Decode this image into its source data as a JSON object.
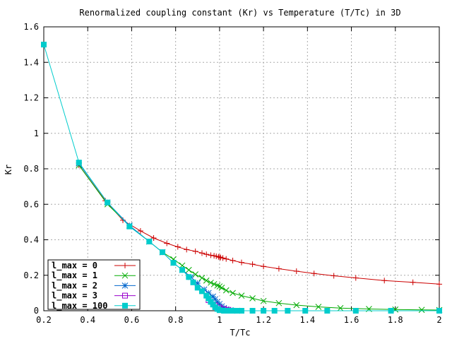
{
  "chart_data": {
    "type": "line",
    "title": "Renormalized coupling constant (Kr) vs Temperature (T/Tc) in 3D",
    "xlabel": "T/Tc",
    "ylabel": "Kr",
    "xlim": [
      0.2,
      2.0
    ],
    "ylim": [
      0,
      1.6
    ],
    "xticks": [
      "0.2",
      "0.4",
      "0.6",
      "0.8",
      "1",
      "1.2",
      "1.4",
      "1.6",
      "1.8",
      "2"
    ],
    "yticks": [
      "0",
      "0.2",
      "0.4",
      "0.6",
      "0.8",
      "1",
      "1.2",
      "1.4",
      "1.6"
    ],
    "grid": true,
    "legend_position": "bottom-left",
    "series": [
      {
        "name": "l_max = 0",
        "color": "#cc0000",
        "marker": "plus",
        "x": [
          0.36,
          0.48,
          0.56,
          0.64,
          0.7,
          0.76,
          0.81,
          0.85,
          0.89,
          0.92,
          0.94,
          0.96,
          0.975,
          0.985,
          0.995,
          1.0,
          1.005,
          1.015,
          1.03,
          1.06,
          1.1,
          1.15,
          1.2,
          1.27,
          1.35,
          1.43,
          1.52,
          1.62,
          1.75,
          1.88,
          2.0
        ],
        "y": [
          0.82,
          0.62,
          0.51,
          0.45,
          0.41,
          0.38,
          0.36,
          0.345,
          0.335,
          0.325,
          0.318,
          0.313,
          0.31,
          0.307,
          0.304,
          0.302,
          0.3,
          0.297,
          0.292,
          0.283,
          0.272,
          0.262,
          0.25,
          0.237,
          0.223,
          0.21,
          0.197,
          0.185,
          0.17,
          0.16,
          0.15
        ]
      },
      {
        "name": "l_max = 1",
        "color": "#00aa00",
        "marker": "cross",
        "x": [
          0.36,
          0.49,
          0.59,
          0.68,
          0.74,
          0.79,
          0.83,
          0.86,
          0.89,
          0.92,
          0.94,
          0.96,
          0.975,
          0.99,
          1.0,
          1.01,
          1.03,
          1.06,
          1.1,
          1.15,
          1.2,
          1.27,
          1.35,
          1.45,
          1.55,
          1.68,
          1.8,
          1.92,
          2.0
        ],
        "y": [
          0.82,
          0.6,
          0.48,
          0.39,
          0.33,
          0.29,
          0.255,
          0.23,
          0.205,
          0.185,
          0.17,
          0.158,
          0.15,
          0.142,
          0.137,
          0.13,
          0.115,
          0.1,
          0.085,
          0.07,
          0.055,
          0.043,
          0.032,
          0.022,
          0.015,
          0.01,
          0.007,
          0.005,
          0.004
        ]
      },
      {
        "name": "l_max = 2",
        "color": "#0066cc",
        "marker": "star",
        "x": [
          0.36,
          0.49,
          0.59,
          0.68,
          0.74,
          0.79,
          0.83,
          0.87,
          0.9,
          0.93,
          0.95,
          0.97,
          0.98,
          0.99,
          1.0,
          1.01,
          1.02,
          1.03,
          1.05,
          1.08
        ],
        "y": [
          0.83,
          0.61,
          0.48,
          0.39,
          0.33,
          0.27,
          0.23,
          0.19,
          0.155,
          0.12,
          0.1,
          0.08,
          0.065,
          0.05,
          0.038,
          0.025,
          0.015,
          0.008,
          0.003,
          0.0
        ]
      },
      {
        "name": "l_max = 3",
        "color": "#9900cc",
        "marker": "square-open",
        "x": [
          0.95,
          0.98,
          1.0,
          1.02,
          1.04
        ],
        "y": [
          0.06,
          0.03,
          0.018,
          0.01,
          0.005
        ]
      },
      {
        "name": "l_max = 100",
        "color": "#00cccc",
        "marker": "square-filled",
        "x": [
          0.2,
          0.36,
          0.49,
          0.59,
          0.68,
          0.74,
          0.79,
          0.83,
          0.86,
          0.88,
          0.9,
          0.92,
          0.94,
          0.95,
          0.96,
          0.97,
          0.98,
          0.99,
          1.0,
          1.02,
          1.04,
          1.06,
          1.08,
          1.1,
          1.15,
          1.2,
          1.25,
          1.31,
          1.39,
          1.49,
          1.62,
          1.78,
          2.0
        ],
        "y": [
          1.5,
          0.835,
          0.61,
          0.475,
          0.39,
          0.33,
          0.27,
          0.23,
          0.19,
          0.16,
          0.13,
          0.11,
          0.085,
          0.07,
          0.05,
          0.035,
          0.02,
          0.01,
          0.003,
          0,
          0,
          0,
          0,
          0,
          0,
          0,
          0,
          0,
          0,
          0,
          0,
          0,
          0
        ]
      }
    ]
  }
}
